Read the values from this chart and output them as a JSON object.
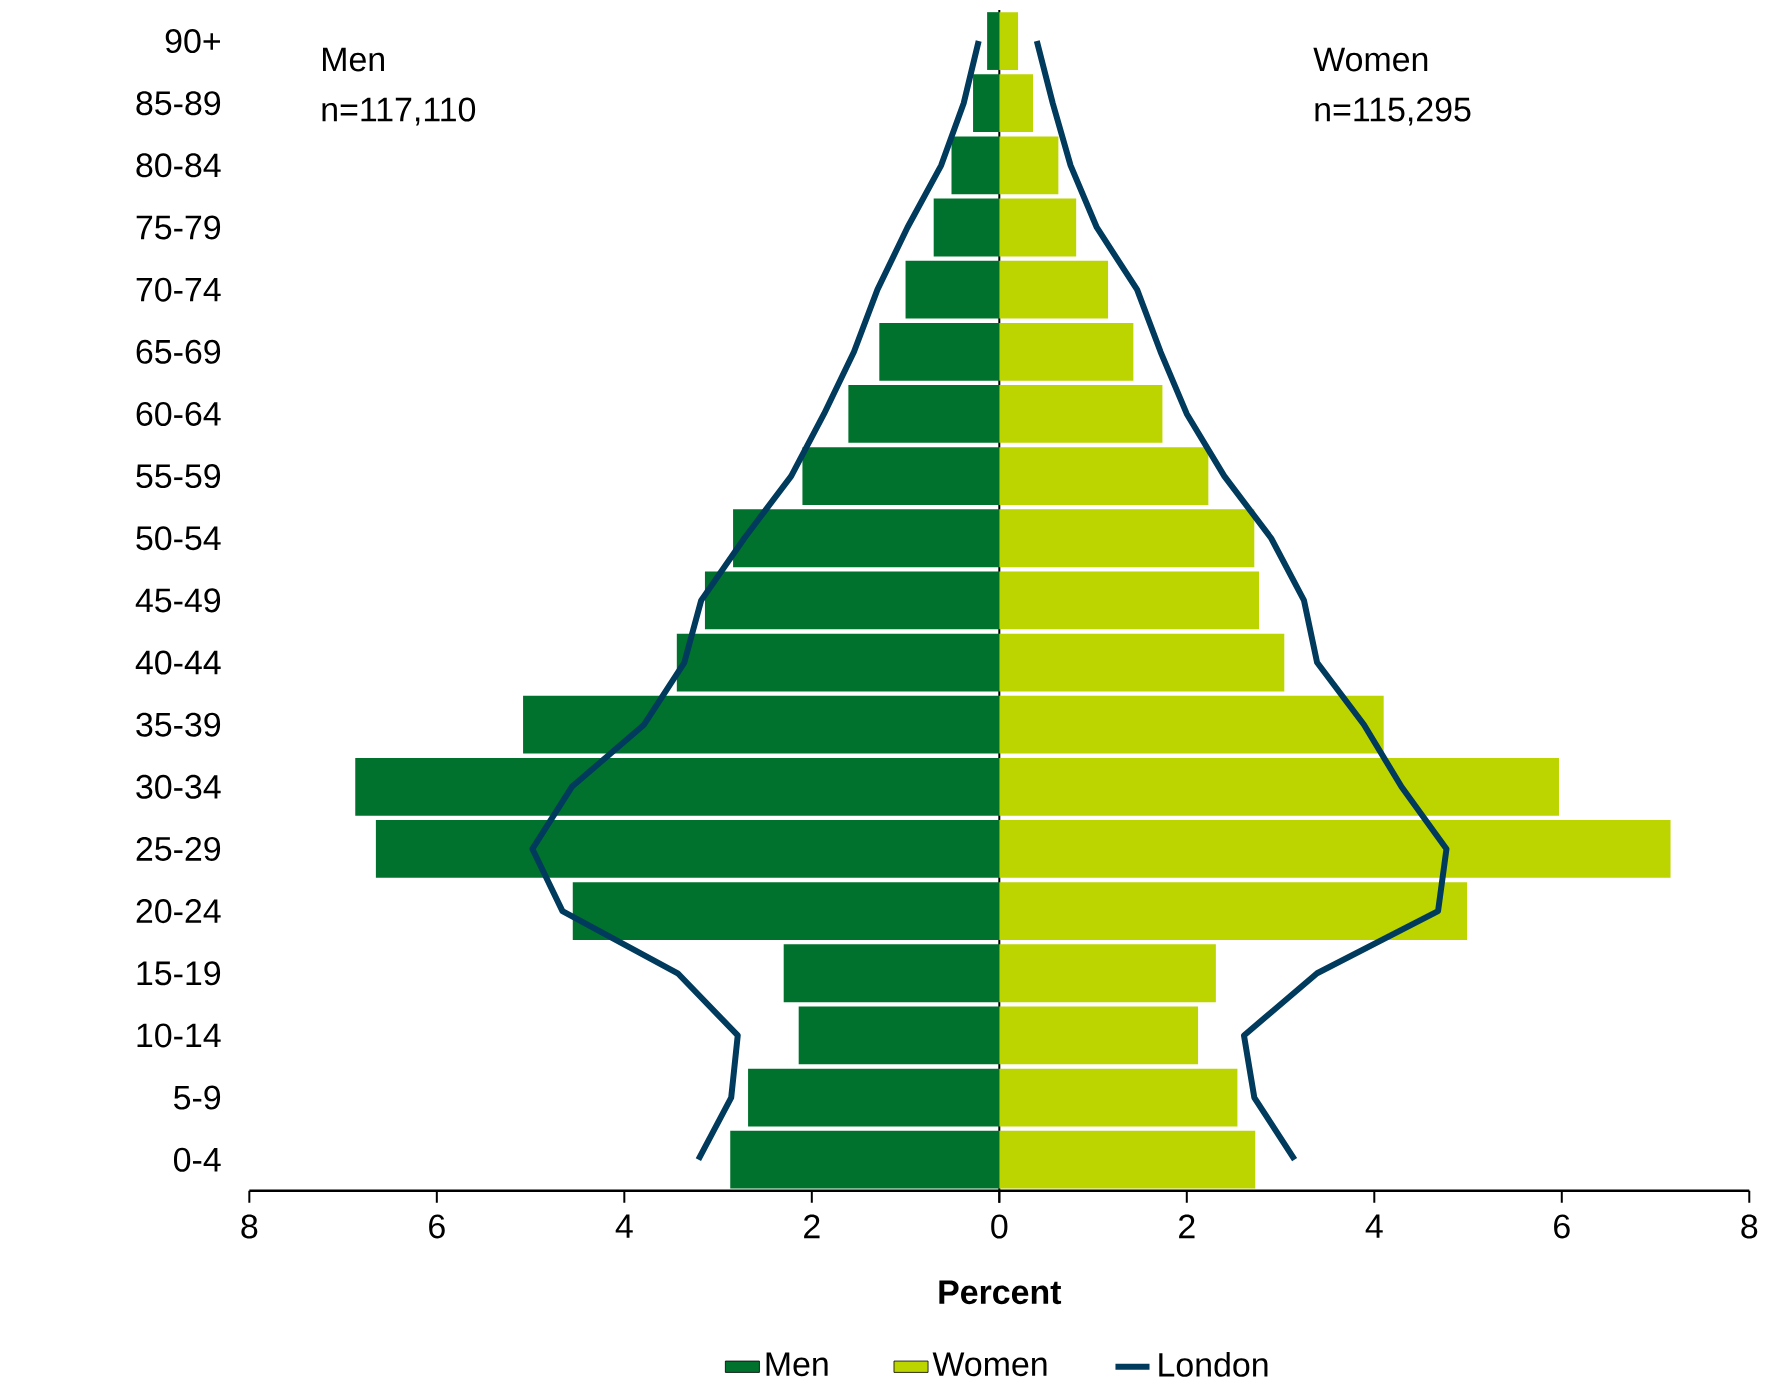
{
  "chart_data": {
    "type": "bar",
    "orientation": "horizontal",
    "xlabel": "Percent",
    "categories": [
      "90+",
      "85-89",
      "80-84",
      "75-79",
      "70-74",
      "65-69",
      "60-64",
      "55-59",
      "50-54",
      "45-49",
      "40-44",
      "35-39",
      "30-34",
      "25-29",
      "20-24",
      "15-19",
      "10-14",
      "5-9",
      "0-4"
    ],
    "series": [
      {
        "name": "Men",
        "color": "#00722d",
        "values": [
          -0.13,
          -0.28,
          -0.51,
          -0.7,
          -1.0,
          -1.28,
          -1.61,
          -2.1,
          -2.84,
          -3.14,
          -3.44,
          -5.08,
          -6.87,
          -6.65,
          -4.55,
          -2.3,
          -2.14,
          -2.68,
          -2.87
        ]
      },
      {
        "name": "Women",
        "color": "#bcd400",
        "values": [
          0.2,
          0.36,
          0.63,
          0.82,
          1.16,
          1.43,
          1.74,
          2.23,
          2.72,
          2.77,
          3.04,
          4.1,
          5.97,
          7.16,
          4.99,
          2.31,
          2.12,
          2.54,
          2.73
        ]
      },
      {
        "name": "London",
        "type": "line",
        "color": "#003a5c",
        "values": [
          -0.22,
          -0.38,
          -0.62,
          -0.98,
          -1.3,
          -1.55,
          -1.87,
          -2.22,
          -2.72,
          -3.18,
          -3.36,
          -3.79,
          -4.56,
          -4.98,
          -4.66,
          -3.43,
          -2.79,
          -2.86,
          -3.21
        ]
      },
      {
        "type": "line",
        "color": "#003a5c",
        "values": [
          0.4,
          0.57,
          0.76,
          1.04,
          1.47,
          1.72,
          2.0,
          2.4,
          2.9,
          3.25,
          3.39,
          3.89,
          4.29,
          4.77,
          4.68,
          3.39,
          2.61,
          2.72,
          3.15
        ]
      }
    ],
    "xlim": [
      -8,
      8
    ],
    "xticks": [
      {
        "value": -8,
        "label": "8"
      },
      {
        "value": -6,
        "label": "6"
      },
      {
        "value": -4,
        "label": "4"
      },
      {
        "value": -2,
        "label": "2"
      },
      0,
      2,
      4,
      6,
      8
    ],
    "annotations": [
      "Men",
      "n=117,110",
      "Women",
      "n=115,295"
    ],
    "legend": "bottom",
    "stacked": true
  }
}
